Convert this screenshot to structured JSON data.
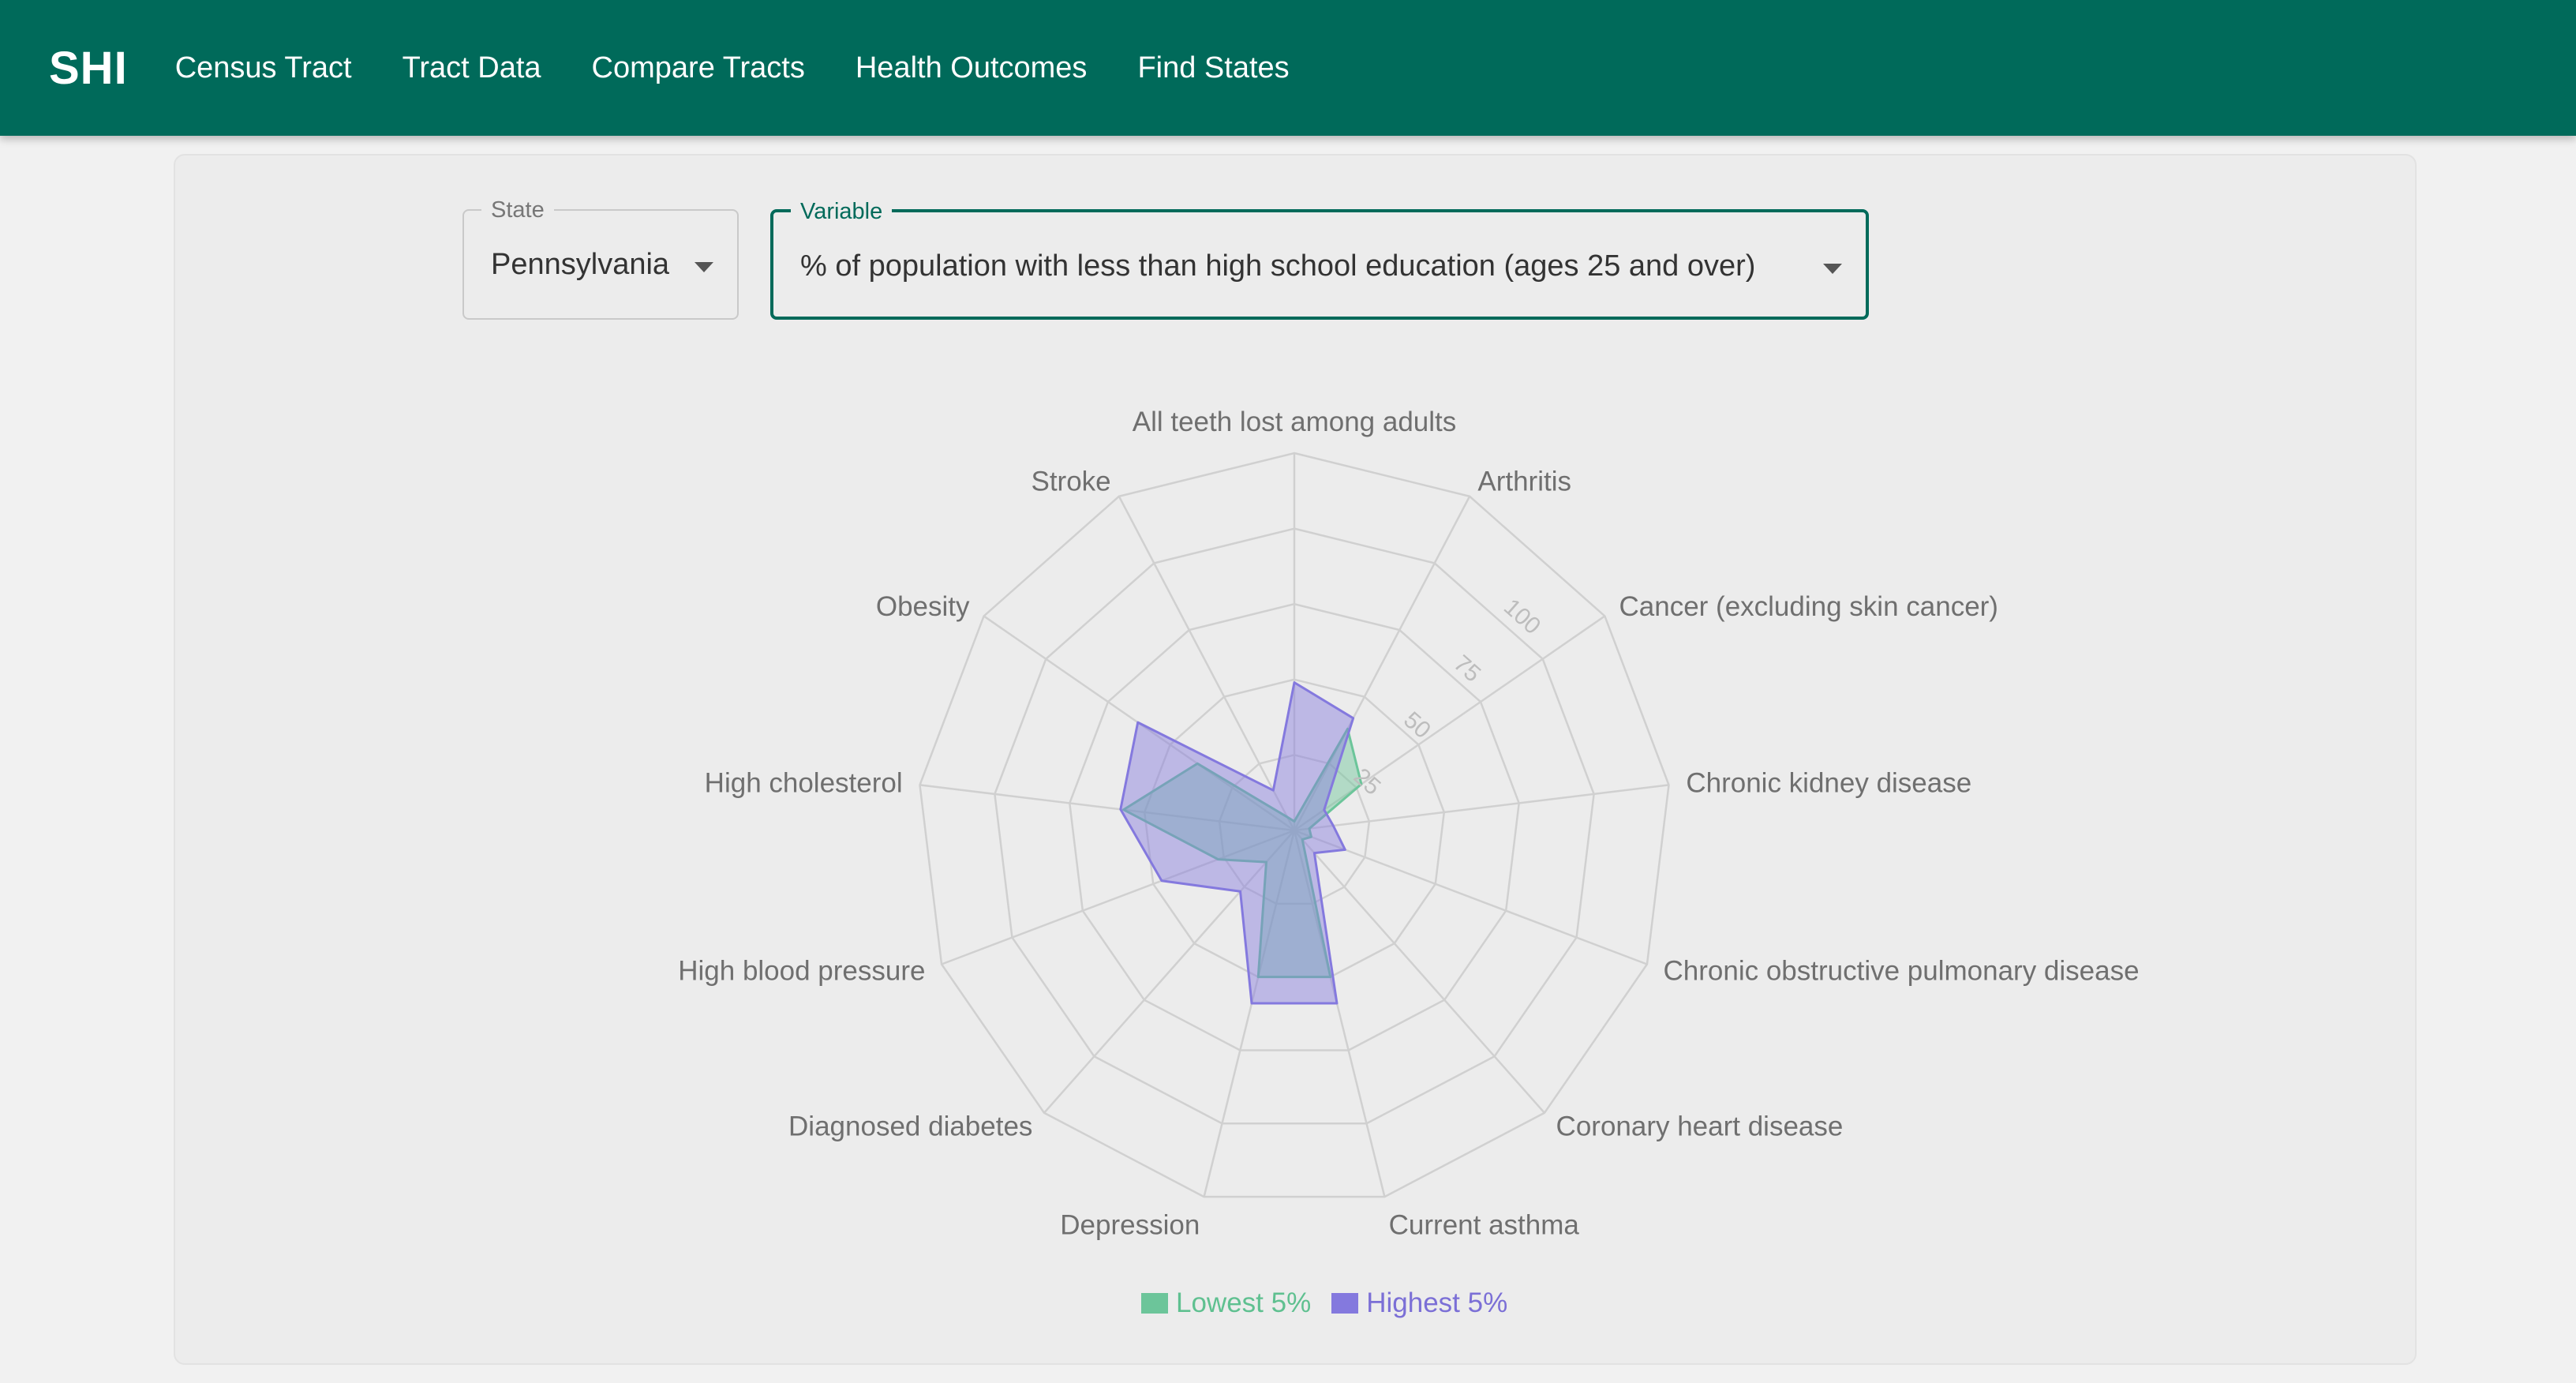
{
  "app": {
    "brand": "SHI",
    "nav": [
      "Census Tract",
      "Tract Data",
      "Compare Tracts",
      "Health Outcomes",
      "Find States"
    ]
  },
  "filters": {
    "state": {
      "label": "State",
      "value": "Pennsylvania"
    },
    "variable": {
      "label": "Variable",
      "value": "% of population with less than high school education (ages 25 and over)"
    }
  },
  "colors": {
    "header": "#006a5a",
    "lowest": "#6cc59a",
    "highest": "#8479de",
    "highest_text": "#7b6fd6",
    "lowest_text": "#5fc090"
  },
  "chart_data": {
    "type": "radar",
    "categories": [
      "All teeth lost among adults",
      "Arthritis",
      "Cancer (excluding skin cancer)",
      "Chronic kidney disease",
      "Chronic obstructive pulmonary disease",
      "Coronary heart disease",
      "Current asthma",
      "Depression",
      "Diagnosed diabetes",
      "High blood pressure",
      "High cholesterol",
      "Obesity",
      "Stroke"
    ],
    "radial_ticks": [
      "25",
      "50",
      "75",
      "100"
    ],
    "range": [
      0,
      125
    ],
    "series": [
      {
        "name": "Lowest 5%",
        "values": [
          3,
          38,
          27,
          5,
          6,
          4,
          50,
          50,
          14,
          27,
          57,
          39,
          5
        ]
      },
      {
        "name": "Highest 5%",
        "values": [
          49,
          42,
          12,
          13,
          18,
          10,
          59,
          59,
          27,
          47,
          58,
          63,
          15
        ]
      }
    ]
  }
}
